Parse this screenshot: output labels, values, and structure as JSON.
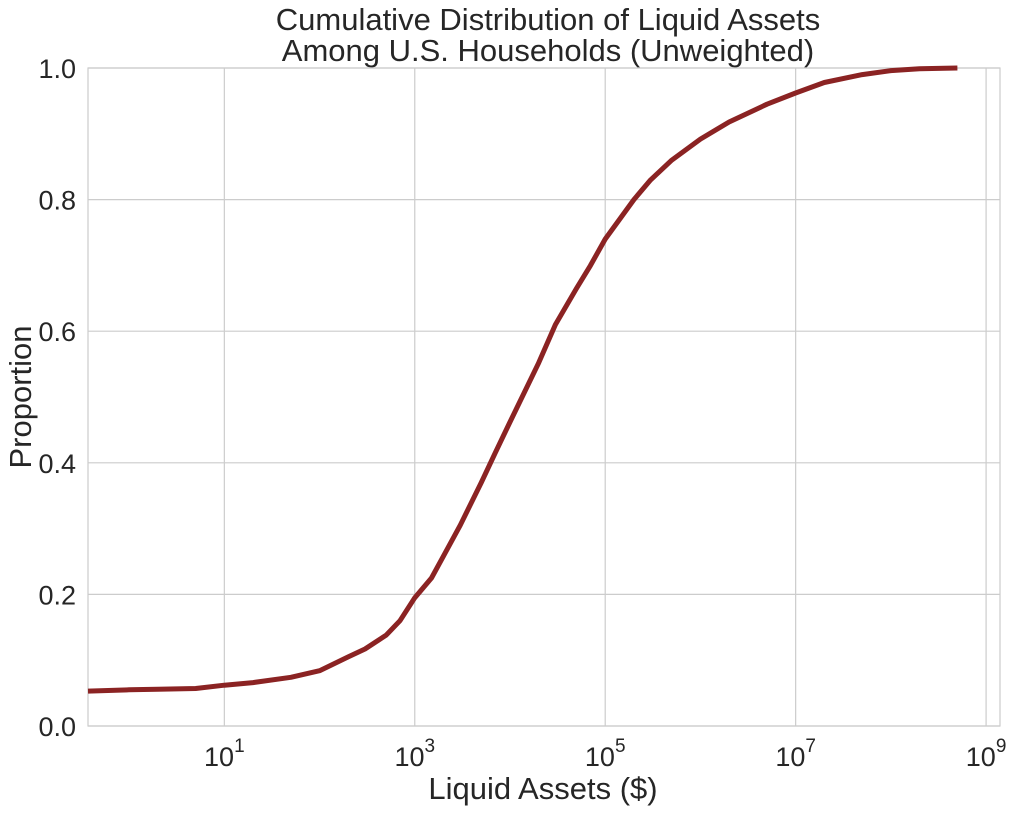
{
  "chart_data": {
    "type": "line",
    "title_lines": [
      "Cumulative Distribution of Liquid Assets",
      "Among U.S. Households (Unweighted)"
    ],
    "xlabel": "Liquid Assets ($)",
    "ylabel": "Proportion",
    "x_scale": "log",
    "xlim": [
      0.37,
      1400000000
    ],
    "ylim": [
      0.0,
      1.0
    ],
    "grid": true,
    "x_ticks": [
      {
        "base": "10",
        "exp": "1",
        "value": 10
      },
      {
        "base": "10",
        "exp": "3",
        "value": 1000
      },
      {
        "base": "10",
        "exp": "5",
        "value": 100000
      },
      {
        "base": "10",
        "exp": "7",
        "value": 10000000
      },
      {
        "base": "10",
        "exp": "9",
        "value": 1000000000
      }
    ],
    "y_ticks": [
      {
        "label": "0.0",
        "value": 0.0
      },
      {
        "label": "0.2",
        "value": 0.2
      },
      {
        "label": "0.4",
        "value": 0.4
      },
      {
        "label": "0.6",
        "value": 0.6
      },
      {
        "label": "0.8",
        "value": 0.8
      },
      {
        "label": "1.0",
        "value": 1.0
      }
    ],
    "series": [
      {
        "color": "#8b2323",
        "x": [
          0.37,
          1,
          2,
          5,
          10,
          20,
          50,
          100,
          200,
          300,
          500,
          700,
          1000,
          1500,
          2000,
          3000,
          5000,
          7000,
          10000,
          20000,
          30000,
          50000,
          70000,
          100000,
          200000,
          300000,
          500000,
          1000000,
          2000000,
          5000000,
          10000000,
          20000000,
          50000000,
          100000000,
          200000000,
          500000000
        ],
        "y": [
          0.053,
          0.055,
          0.056,
          0.057,
          0.062,
          0.066,
          0.074,
          0.084,
          0.105,
          0.117,
          0.138,
          0.16,
          0.195,
          0.225,
          0.258,
          0.305,
          0.37,
          0.415,
          0.462,
          0.552,
          0.61,
          0.665,
          0.7,
          0.74,
          0.8,
          0.83,
          0.86,
          0.892,
          0.918,
          0.945,
          0.962,
          0.978,
          0.99,
          0.996,
          0.999,
          1.0
        ]
      }
    ]
  }
}
